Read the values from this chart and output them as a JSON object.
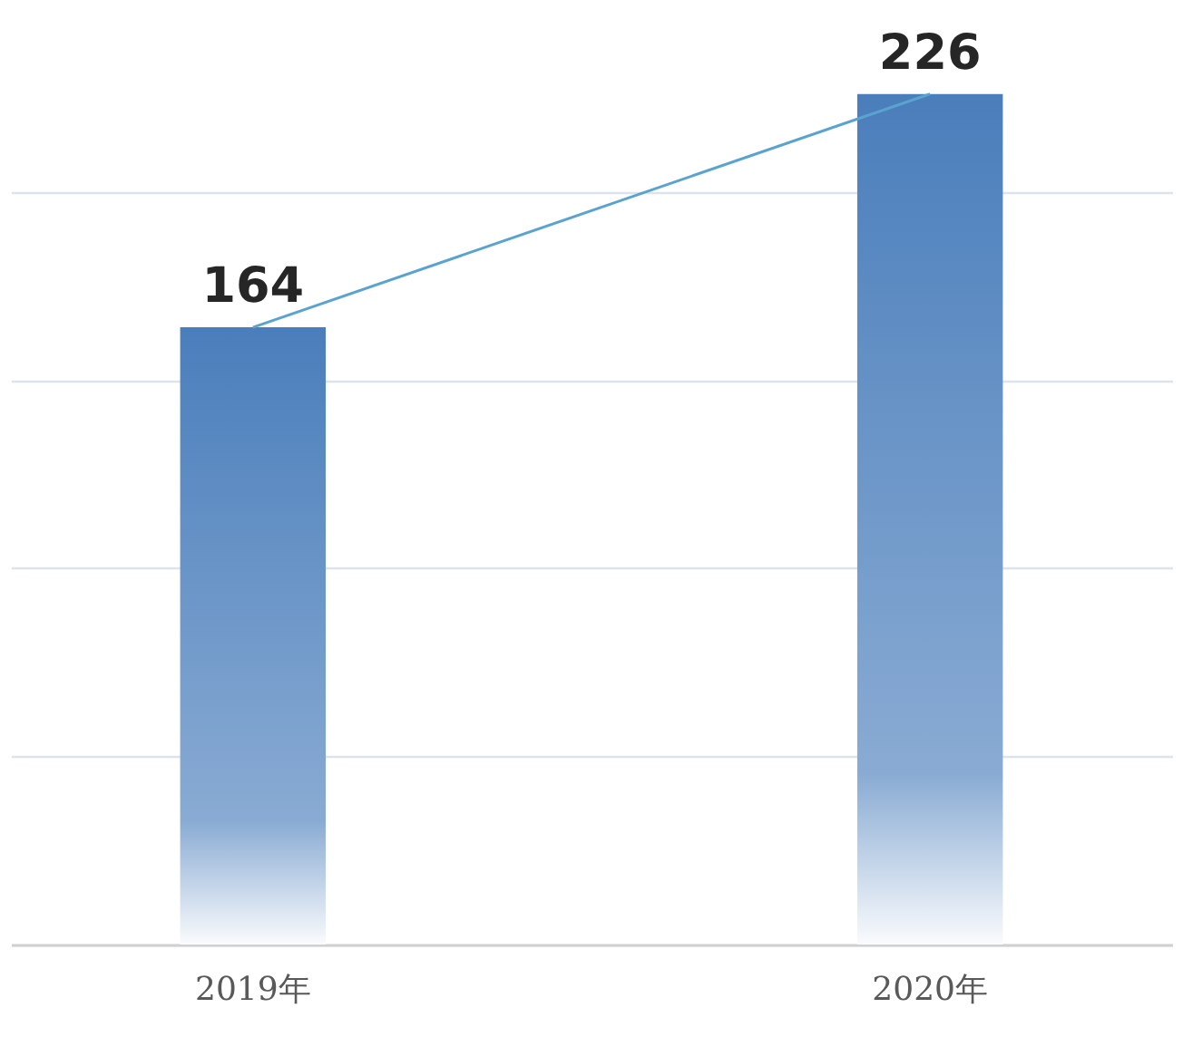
{
  "chart_data": {
    "type": "bar",
    "categories": [
      "2019年",
      "2020年"
    ],
    "series": [
      {
        "color": "#4a7ebb",
        "values": [
          164,
          226
        ],
        "value_labels": [
          "164",
          "226"
        ]
      },
      {
        "type": "line",
        "color": "#5ba3cf",
        "values": [
          164,
          226
        ]
      }
    ],
    "ylim": [
      0,
      250
    ],
    "yticks": [
      {
        "value": 0,
        "label": null
      },
      {
        "value": 50,
        "label": null
      },
      {
        "value": 100,
        "label": null
      },
      {
        "value": 150,
        "label": null
      },
      {
        "value": 200,
        "label": null
      }
    ],
    "tick_labels": "x",
    "grid": "y"
  }
}
